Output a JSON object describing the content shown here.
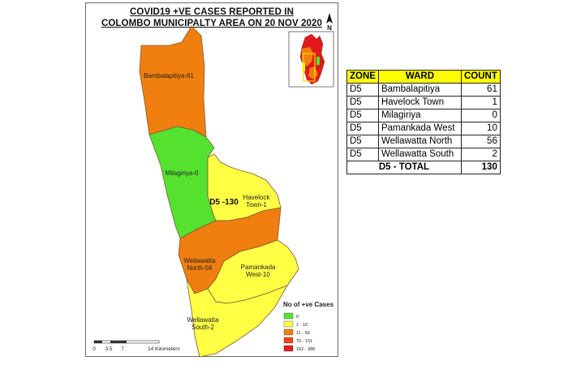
{
  "map": {
    "title_line1": "COVID19 +VE CASES REPORTED IN",
    "title_line2": "COLOMBO MUNICIPALTY AREA ON 20 NOV 2020",
    "north_arrow_label": "N",
    "zone_label": "D5 -130",
    "wards": [
      {
        "name": "Bambalapitiya",
        "label": "Bambalapitiya-61",
        "count": 61,
        "fill": "#f07f0f"
      },
      {
        "name": "Milagiriya",
        "label": "Milagiriya-0",
        "count": 0,
        "fill": "#55e22f"
      },
      {
        "name": "Havelock Town",
        "label_line1": "Havelock",
        "label_line2": "Town-1",
        "count": 1,
        "fill": "#ffff44"
      },
      {
        "name": "Wellawatta North",
        "label_line1": "Wellawatta",
        "label_line2": "North-56",
        "count": 56,
        "fill": "#f07f0f"
      },
      {
        "name": "Pamankada West",
        "label_line1": "Pamankada",
        "label_line2": "West-10",
        "count": 10,
        "fill": "#ffff44"
      },
      {
        "name": "Wellawatta South",
        "label_line1": "Wellawatta",
        "label_line2": "South-2",
        "count": 2,
        "fill": "#ffff44"
      }
    ],
    "legend": {
      "title": "No of +ve Cases",
      "items": [
        {
          "label": "0",
          "color": "#55e22f"
        },
        {
          "label": "1 - 10",
          "color": "#ffff44"
        },
        {
          "label": "11 - 69",
          "color": "#f07f0f"
        },
        {
          "label": "70 - 151",
          "color": "#f0421a"
        },
        {
          "label": "152 - 388",
          "color": "#e41a1a"
        }
      ]
    },
    "scale_bar": {
      "ticks": [
        "0",
        "3.5",
        "7",
        "14 Kilometers"
      ]
    }
  },
  "table": {
    "headers": {
      "zone": "ZONE",
      "ward": "WARD",
      "count": "COUNT"
    },
    "rows": [
      {
        "zone": "D5",
        "ward": "Bambalapitiya",
        "count": "61"
      },
      {
        "zone": "D5",
        "ward": "Havelock Town",
        "count": "1"
      },
      {
        "zone": "D5",
        "ward": "Milagiriya",
        "count": "0"
      },
      {
        "zone": "D5",
        "ward": "Pamankada West",
        "count": "10"
      },
      {
        "zone": "D5",
        "ward": "Wellawatta North",
        "count": "56"
      },
      {
        "zone": "D5",
        "ward": "Wellawatta South",
        "count": "2"
      }
    ],
    "total_label": "D5 - TOTAL",
    "total_count": "130"
  }
}
